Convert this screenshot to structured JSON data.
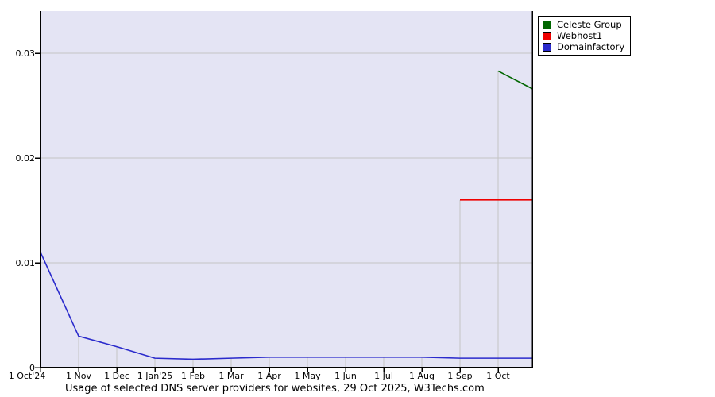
{
  "chart_data": {
    "type": "line",
    "title": "Usage of selected DNS server providers for websites, 29 Oct 2025, W3Techs.com",
    "x_tick_labels": [
      "1 Oct'24",
      "1 Nov",
      "1 Dec",
      "1 Jan'25",
      "1 Feb",
      "1 Mar",
      "1 Apr",
      "1 May",
      "1 Jun",
      "1 Jul",
      "1 Aug",
      "1 Sep",
      "1 Oct"
    ],
    "y_tick_labels": [
      "0",
      "0.01",
      "0.02",
      "0.03"
    ],
    "y_tick_values": [
      0,
      0.01,
      0.02,
      0.03
    ],
    "ylim": [
      0,
      0.034
    ],
    "x_range_months": [
      0,
      12.9
    ],
    "grid": true,
    "legend_position": "top-right",
    "colors": {
      "plot_bg": "#e4e4f4",
      "grid": "#c4c4c4",
      "axis": "#000000",
      "celeste_group": "#006600",
      "webhost1": "#ee0000",
      "domainfactory": "#2a2acc"
    },
    "series": [
      {
        "name": "Celeste Group",
        "color": "#006600",
        "points": [
          [
            12,
            0.0283
          ],
          [
            12.9,
            0.0266
          ]
        ]
      },
      {
        "name": "Webhost1",
        "color": "#ee0000",
        "points": [
          [
            11,
            0.016
          ],
          [
            12,
            0.016
          ],
          [
            12.9,
            0.016
          ]
        ]
      },
      {
        "name": "Domainfactory",
        "color": "#2a2acc",
        "points": [
          [
            0,
            0.011
          ],
          [
            1,
            0.003
          ],
          [
            2,
            0.002
          ],
          [
            3,
            0.0009
          ],
          [
            4,
            0.0008
          ],
          [
            5,
            0.0009
          ],
          [
            6,
            0.001
          ],
          [
            7,
            0.001
          ],
          [
            8,
            0.001
          ],
          [
            9,
            0.001
          ],
          [
            10,
            0.001
          ],
          [
            11,
            0.0009
          ],
          [
            12,
            0.0009
          ],
          [
            12.9,
            0.0009
          ]
        ]
      }
    ]
  }
}
